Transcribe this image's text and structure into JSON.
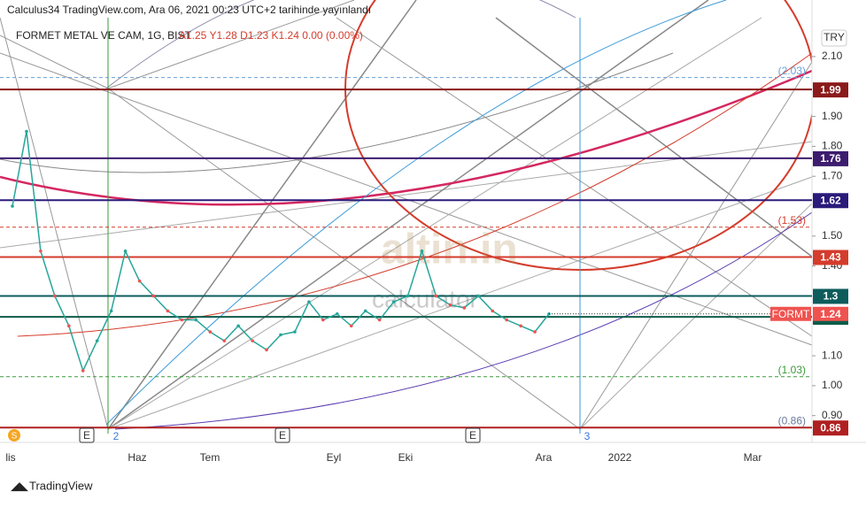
{
  "header": {
    "publisher": "Calculus34 TradingView.com, Ara 06, 2021 00:23 UTC+2 tarihinde yayınlandı"
  },
  "legend": {
    "symbol": "FORMET METAL VE CAM, 1G, BIST",
    "ohlc": "A1.25 Y1.28 D1.23 K1.24 0.00 (0.00%)"
  },
  "currency": "TRY",
  "watermark": {
    "brand": "altin.in",
    "sub": "calculator"
  },
  "footer": {
    "brand": "TradingView"
  },
  "chart_data": {
    "type": "line",
    "color": "#26a69a",
    "values": [
      1.6,
      1.85,
      1.45,
      1.3,
      1.2,
      1.05,
      1.15,
      1.25,
      1.45,
      1.35,
      1.3,
      1.25,
      1.22,
      1.22,
      1.18,
      1.15,
      1.2,
      1.15,
      1.12,
      1.17,
      1.18,
      1.28,
      1.22,
      1.24,
      1.2,
      1.25,
      1.22,
      1.28,
      1.3,
      1.45,
      1.3,
      1.27,
      1.26,
      1.3,
      1.25,
      1.22,
      1.2,
      1.18,
      1.24
    ],
    "ylim": [
      0.84,
      2.23
    ],
    "yticks": [
      {
        "value": 0.9,
        "label": "0.90"
      },
      {
        "value": 1.0,
        "label": "1.00"
      },
      {
        "value": 1.1,
        "label": "1.10"
      },
      {
        "value": 1.4,
        "label": "1.40"
      },
      {
        "value": 1.5,
        "label": "1.50"
      },
      {
        "value": 1.7,
        "label": "1.70"
      },
      {
        "value": 1.8,
        "label": "1.80"
      },
      {
        "value": 1.9,
        "label": "1.90"
      },
      {
        "value": 2.1,
        "label": "2.10"
      }
    ],
    "x_labels": [
      "lis",
      "Haz",
      "Tem",
      "Eyl",
      "Eki",
      "Ara",
      "2022",
      "Mar"
    ],
    "levels": [
      {
        "value": 1.99,
        "color": "#8b1a1a"
      },
      {
        "value": 1.76,
        "color": "#3d1c6e"
      },
      {
        "value": 1.62,
        "color": "#2a1a7a"
      },
      {
        "value": 1.43,
        "color": "#d43c2c"
      },
      {
        "value": 1.3,
        "color": "#0d5c5c"
      },
      {
        "value": 1.23,
        "color": "#0d5c4a"
      },
      {
        "value": 0.86,
        "color": "#b02020"
      }
    ],
    "dashed_levels": [
      {
        "value": 2.03,
        "label": "(2.03)",
        "color": "#6aa0d8"
      },
      {
        "value": 1.53,
        "label": "(1.53)",
        "color": "#d43c2c"
      },
      {
        "value": 1.03,
        "label": "(1.03)",
        "color": "#3a9a3a"
      },
      {
        "value": 0.86,
        "label": "(0.86)",
        "color": "#6a7a9a"
      }
    ],
    "last": {
      "name": "FORMT",
      "value": 1.24
    },
    "event_markers": [
      "E",
      "E",
      "E"
    ],
    "cycle_markers": [
      "2",
      "3"
    ],
    "split_marker": "S"
  }
}
